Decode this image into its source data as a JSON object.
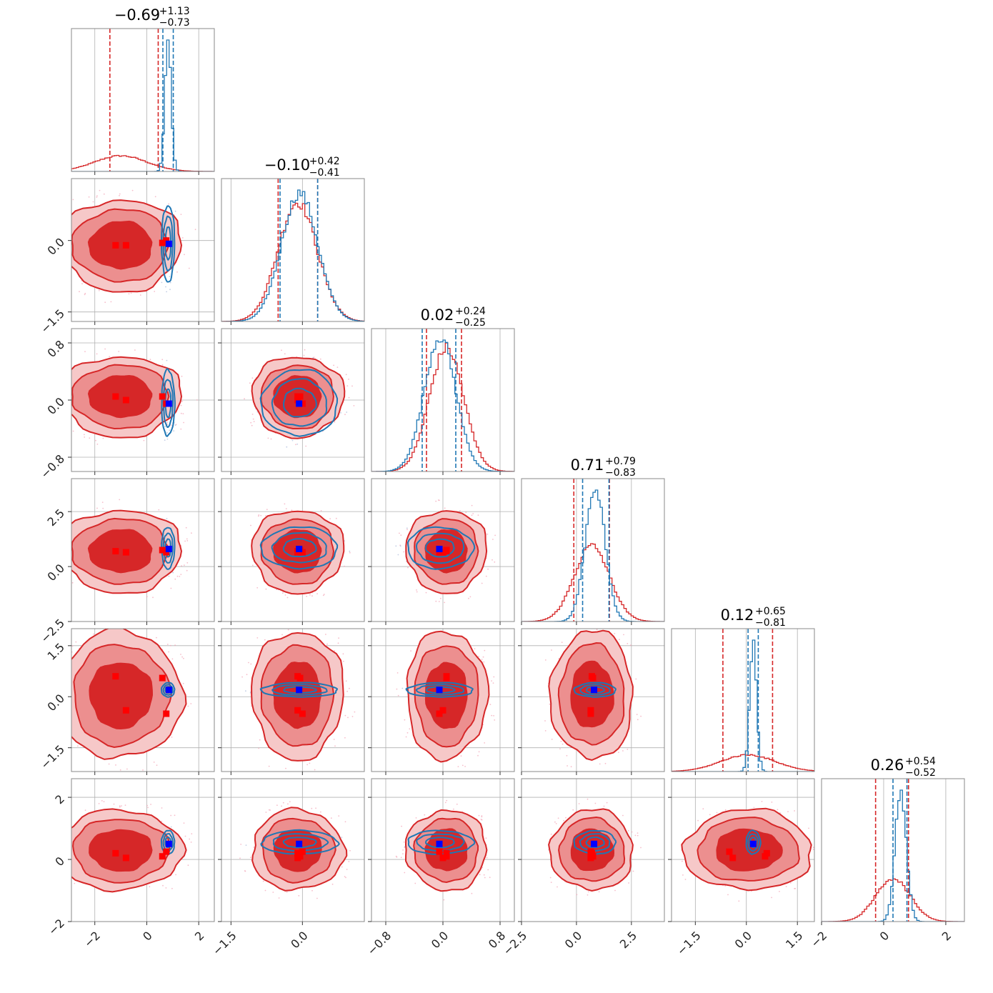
{
  "chart_data": {
    "type": "corner",
    "title": "",
    "parameters": 6,
    "colors": {
      "red": "#d62728",
      "blue": "#1f77b4",
      "red_mid": "#ec8f8f",
      "red_light": "#f6c8c8",
      "marker_blue": "#0000ff",
      "marker_red": "#ff0000"
    },
    "titles": [
      {
        "median": "−0.69",
        "plus": "+1.13",
        "minus": "−0.73"
      },
      {
        "median": "−0.10",
        "plus": "+0.42",
        "minus": "−0.41"
      },
      {
        "median": "0.02",
        "plus": "+0.24",
        "minus": "−0.25"
      },
      {
        "median": "0.71",
        "plus": "+0.79",
        "minus": "−0.83"
      },
      {
        "median": "0.12",
        "plus": "+0.65",
        "minus": "−0.81"
      },
      {
        "median": "0.26",
        "plus": "+0.54",
        "minus": "−0.52"
      }
    ],
    "axes": [
      {
        "range": [
          -2.9,
          2.6
        ],
        "ticks": [
          -2,
          0,
          2
        ],
        "tick_labels": [
          "−2",
          "0",
          "2"
        ]
      },
      {
        "range": [
          -1.7,
          1.3
        ],
        "ticks": [
          -1.5,
          0.0
        ],
        "tick_labels": [
          "−1.5",
          "0.0"
        ]
      },
      {
        "range": [
          -1.0,
          1.0
        ],
        "ticks": [
          -0.8,
          0.0,
          0.8
        ],
        "tick_labels": [
          "−0.8",
          "0.0",
          "0.8"
        ]
      },
      {
        "range": [
          -2.5,
          4.0
        ],
        "ticks": [
          -2.5,
          0.0,
          2.5
        ],
        "tick_labels": [
          "−2.5",
          "0.0",
          "2.5"
        ]
      },
      {
        "range": [
          -2.2,
          2.0
        ],
        "ticks": [
          -1.5,
          0.0,
          1.5
        ],
        "tick_labels": [
          "−1.5",
          "0.0",
          "1.5"
        ]
      },
      {
        "range": [
          -2.0,
          2.6
        ],
        "ticks": [
          -2,
          0,
          2
        ],
        "tick_labels": [
          "−2",
          "0",
          "2"
        ]
      }
    ],
    "series": [
      {
        "color": "#d62728",
        "marginals": [
          {
            "mean": -1.0,
            "sd": 1.0,
            "quantiles": [
              -1.42,
              -0.69,
              0.44
            ]
          },
          {
            "mean": -0.1,
            "sd": 0.41,
            "quantiles": [
              -0.51,
              -0.1,
              0.32
            ]
          },
          {
            "mean": 0.05,
            "sd": 0.24,
            "quantiles": [
              -0.23,
              0.02,
              0.26
            ]
          },
          {
            "mean": 0.7,
            "sd": 0.8,
            "quantiles": [
              -0.12,
              0.71,
              1.5
            ]
          },
          {
            "mean": 0.05,
            "sd": 0.8,
            "quantiles": [
              -0.69,
              0.12,
              0.77
            ]
          },
          {
            "mean": 0.3,
            "sd": 0.55,
            "quantiles": [
              -0.26,
              0.26,
              0.8
            ]
          }
        ]
      },
      {
        "color": "#1f77b4",
        "marginals": [
          {
            "mean": 0.82,
            "sd": 0.12,
            "quantiles": [
              0.62,
              0.82,
              1.02
            ]
          },
          {
            "mean": -0.06,
            "sd": 0.38,
            "quantiles": [
              -0.47,
              -0.06,
              0.32
            ]
          },
          {
            "mean": -0.04,
            "sd": 0.22,
            "quantiles": [
              -0.29,
              -0.04,
              0.18
            ]
          },
          {
            "mean": 0.85,
            "sd": 0.45,
            "quantiles": [
              0.28,
              0.85,
              1.48
            ]
          },
          {
            "mean": 0.2,
            "sd": 0.1,
            "quantiles": [
              0.05,
              0.2,
              0.35
            ]
          },
          {
            "mean": 0.55,
            "sd": 0.18,
            "quantiles": [
              0.3,
              0.55,
              0.75
            ]
          }
        ]
      }
    ],
    "markers": {
      "blue": [
        0.85,
        -0.07,
        -0.05,
        0.8,
        0.2,
        0.5
      ],
      "red": [
        [
          -1.2,
          -0.1,
          0.05,
          0.7,
          0.6,
          0.2
        ],
        [
          -0.8,
          -0.1,
          0.0,
          0.65,
          -0.4,
          0.05
        ],
        [
          0.6,
          -0.05,
          0.05,
          0.75,
          0.55,
          0.1
        ],
        [
          0.75,
          0.0,
          -0.05,
          0.65,
          -0.5,
          0.25
        ]
      ]
    }
  }
}
